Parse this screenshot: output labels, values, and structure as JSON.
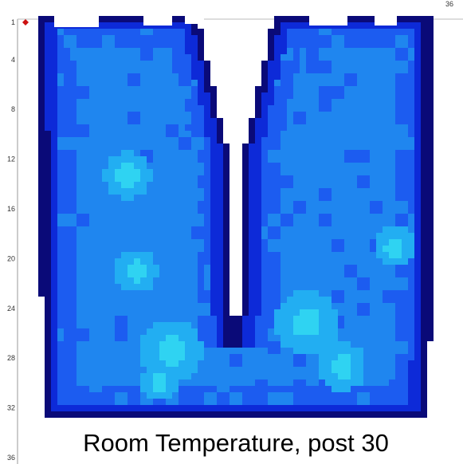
{
  "chart_data": {
    "type": "heatmap",
    "title": "",
    "caption": "Room Temperature, post 30",
    "xlabel": "",
    "ylabel": "",
    "y_ticks": [
      "1",
      "4",
      "8",
      "12",
      "16",
      "20",
      "24",
      "28",
      "32",
      "36"
    ],
    "corner_label": "36",
    "ylim": [
      1,
      36
    ],
    "grid": false,
    "legend": "none",
    "colors": {
      "background": "#ffffff",
      "outline": "#0a0a78",
      "outer": "#0d2ad8",
      "mid": "#1c5cf0",
      "inner": "#1f86ef",
      "warm": "#22aef2",
      "hot": "#2fd3f2",
      "marker": "#cc1111"
    },
    "icons": {
      "marker": "diamond-marker-icon"
    }
  }
}
